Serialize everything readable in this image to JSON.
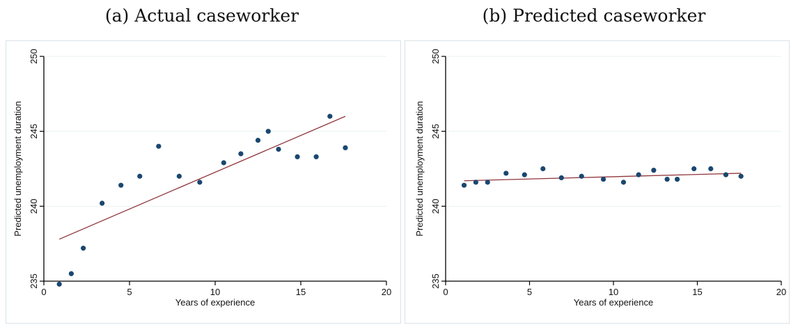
{
  "panels": {
    "a": {
      "title": "(a) Actual caseworker"
    },
    "b": {
      "title": "(b) Predicted caseworker"
    }
  },
  "colors": {
    "marker": "#1a476f",
    "fit_line": "#90353b",
    "grid": "#eaf2f3",
    "axis": "#000000"
  },
  "chart_data": [
    {
      "type": "scatter",
      "xlabel": "Years of experience",
      "ylabel": "Predicted unemployment duration",
      "xlim": [
        0,
        20
      ],
      "ylim": [
        235,
        250
      ],
      "xticks": [
        0,
        5,
        10,
        15,
        20
      ],
      "yticks": [
        235,
        240,
        245,
        250
      ],
      "grid": true,
      "points": [
        [
          0.9,
          234.8
        ],
        [
          1.6,
          235.5
        ],
        [
          2.3,
          237.2
        ],
        [
          3.4,
          240.2
        ],
        [
          4.5,
          241.4
        ],
        [
          5.6,
          242.0
        ],
        [
          6.7,
          244.0
        ],
        [
          7.9,
          242.0
        ],
        [
          9.1,
          241.6
        ],
        [
          10.5,
          242.9
        ],
        [
          11.5,
          243.5
        ],
        [
          12.5,
          244.4
        ],
        [
          13.1,
          245.0
        ],
        [
          13.7,
          243.8
        ],
        [
          14.8,
          243.3
        ],
        [
          15.9,
          243.3
        ],
        [
          16.7,
          246.0
        ],
        [
          17.6,
          243.9
        ]
      ],
      "fit_line": [
        [
          0.9,
          237.8
        ],
        [
          17.6,
          246.0
        ]
      ]
    },
    {
      "type": "scatter",
      "xlabel": "Years of experience",
      "ylabel": "Predicted unemployment duration",
      "xlim": [
        0,
        20
      ],
      "ylim": [
        235,
        250
      ],
      "xticks": [
        0,
        5,
        10,
        15,
        20
      ],
      "yticks": [
        235,
        240,
        245,
        250
      ],
      "grid": true,
      "points": [
        [
          1.1,
          241.4
        ],
        [
          1.8,
          241.6
        ],
        [
          2.5,
          241.6
        ],
        [
          3.6,
          242.2
        ],
        [
          4.7,
          242.1
        ],
        [
          5.8,
          242.5
        ],
        [
          6.9,
          241.9
        ],
        [
          8.1,
          242.0
        ],
        [
          9.4,
          241.8
        ],
        [
          10.6,
          241.6
        ],
        [
          11.5,
          242.1
        ],
        [
          12.4,
          242.4
        ],
        [
          13.2,
          241.8
        ],
        [
          13.8,
          241.8
        ],
        [
          14.8,
          242.5
        ],
        [
          15.8,
          242.5
        ],
        [
          16.7,
          242.1
        ],
        [
          17.6,
          242.0
        ]
      ],
      "fit_line": [
        [
          1.1,
          241.7
        ],
        [
          17.6,
          242.2
        ]
      ]
    }
  ]
}
